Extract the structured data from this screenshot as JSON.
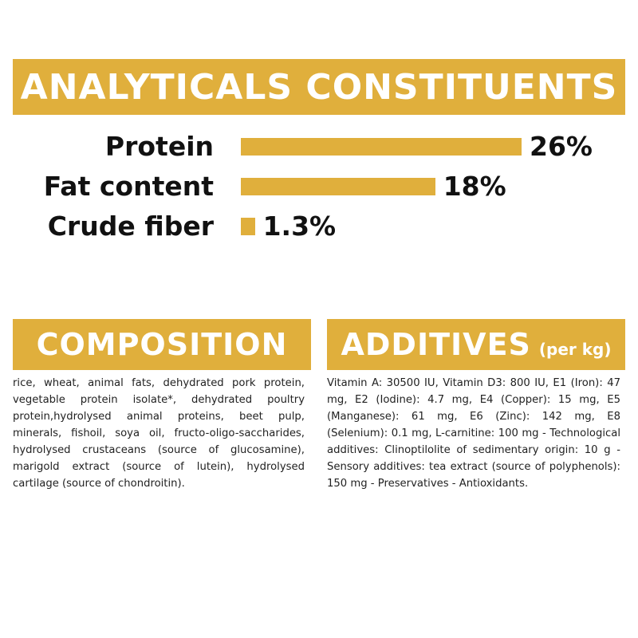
{
  "analytics": {
    "title": "ANALYTICALS CONSTITUENTS",
    "items": [
      {
        "label": "Protein",
        "value_text": "26%",
        "value": 26
      },
      {
        "label": "Fat content",
        "value_text": "18%",
        "value": 18
      },
      {
        "label": "Crude fiber",
        "value_text": "1.3%",
        "value": 1.3
      }
    ]
  },
  "composition": {
    "title": "COMPOSITION",
    "text": "rice, wheat, animal fats, dehydrated pork protein, vegetable protein isolate*, dehydrated poultry protein,hydrolysed animal proteins, beet pulp, minerals, fishoil, soya oil, fructo-oligo-saccharides, hydrolysed crustaceans (source of glucosamine), marigold extract (source of lutein), hydrolysed cartilage (source of chondroitin)."
  },
  "additives": {
    "title": "ADDITIVES",
    "subtitle": "(per kg)",
    "text": "Vitamin A: 30500 IU, Vitamin D3: 800 IU, E1 (Iron): 47 mg, E2 (Iodine): 4.7 mg, E4 (Copper): 15 mg, E5 (Manganese): 61 mg, E6 (Zinc): 142 mg, E8 (Selenium): 0.1 mg, L-carnitine: 100 mg - Technological additives: Clinoptilolite of sedimentary origin: 10 g - Sensory additives: tea extract (source of polyphenols): 150 mg - Preservatives - Antioxidants."
  },
  "colors": {
    "accent": "#E0AF3C",
    "text": "#111111",
    "banner_text": "#ffffff"
  }
}
